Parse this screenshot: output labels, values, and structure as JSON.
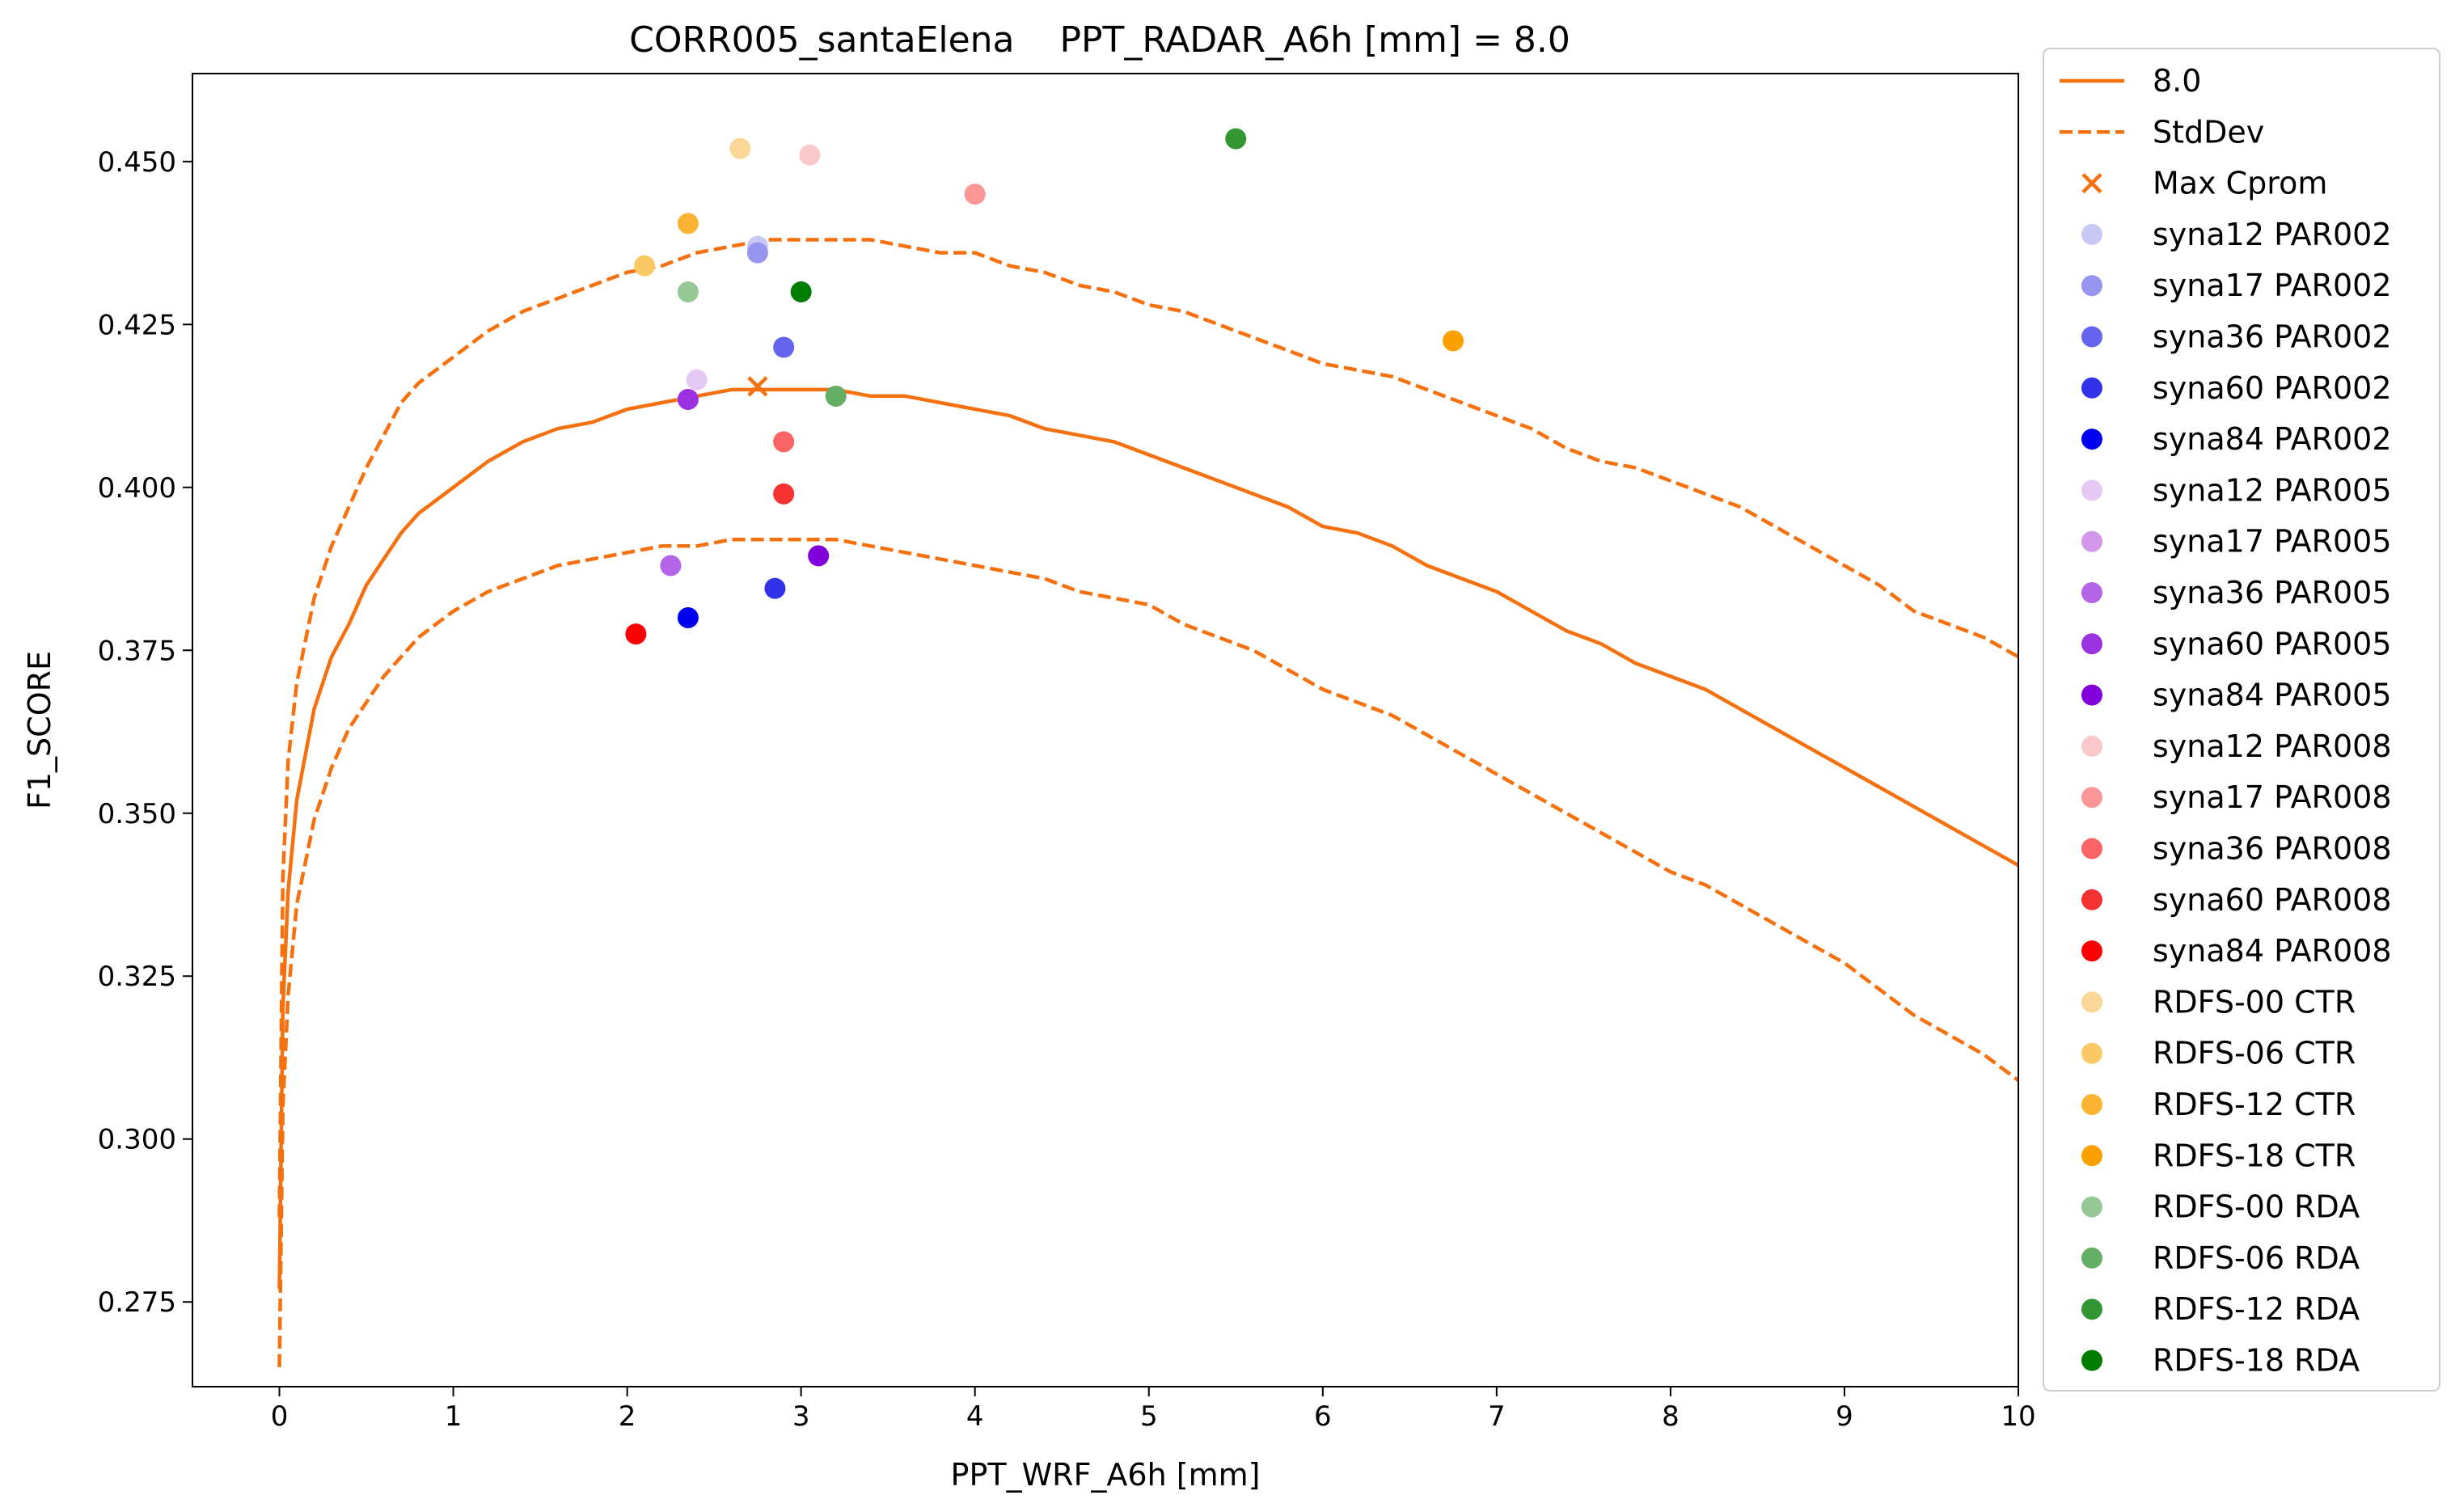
{
  "chart_data": {
    "type": "line",
    "title": "CORR005_santaElena    PPT_RADAR_A6h [mm] = 8.0",
    "xlabel": "PPT_WRF_A6h [mm]",
    "ylabel": "F1_SCORE",
    "xlim": [
      -0.5,
      10
    ],
    "ylim": [
      0.262,
      0.4635
    ],
    "x_ticks": [
      0,
      1,
      2,
      3,
      4,
      5,
      6,
      7,
      8,
      9,
      10
    ],
    "x_tick_labels": [
      "0",
      "1",
      "2",
      "3",
      "4",
      "5",
      "6",
      "7",
      "8",
      "9",
      "10"
    ],
    "y_ticks": [
      0.275,
      0.3,
      0.325,
      0.35,
      0.375,
      0.4,
      0.425,
      0.45
    ],
    "y_tick_labels": [
      "0.275",
      "0.300",
      "0.325",
      "0.350",
      "0.375",
      "0.400",
      "0.425",
      "0.450"
    ],
    "grid": false,
    "legend_position": "outside-right",
    "line_color": "#f5700f",
    "lines": [
      {
        "name": "8.0",
        "style": "solid",
        "x": [
          0,
          0.02,
          0.05,
          0.1,
          0.2,
          0.3,
          0.4,
          0.5,
          0.6,
          0.7,
          0.8,
          0.9,
          1.0,
          1.2,
          1.4,
          1.6,
          1.8,
          2.0,
          2.2,
          2.4,
          2.6,
          2.8,
          3.0,
          3.2,
          3.4,
          3.6,
          3.8,
          4.0,
          4.2,
          4.4,
          4.6,
          4.8,
          5.0,
          5.2,
          5.4,
          5.6,
          5.8,
          6.0,
          6.2,
          6.4,
          6.6,
          6.8,
          7.0,
          7.2,
          7.4,
          7.6,
          7.8,
          8.0,
          8.2,
          8.4,
          8.6,
          8.8,
          9.0,
          9.2,
          9.4,
          9.6,
          9.8,
          10.0
        ],
        "y": [
          0.277,
          0.32,
          0.338,
          0.352,
          0.366,
          0.374,
          0.379,
          0.385,
          0.389,
          0.393,
          0.396,
          0.398,
          0.4,
          0.404,
          0.407,
          0.409,
          0.41,
          0.412,
          0.413,
          0.414,
          0.415,
          0.415,
          0.415,
          0.415,
          0.414,
          0.414,
          0.413,
          0.412,
          0.411,
          0.409,
          0.408,
          0.407,
          0.405,
          0.403,
          0.401,
          0.399,
          0.397,
          0.394,
          0.393,
          0.391,
          0.388,
          0.386,
          0.384,
          0.381,
          0.378,
          0.376,
          0.373,
          0.371,
          0.369,
          0.366,
          0.363,
          0.36,
          0.357,
          0.354,
          0.351,
          0.348,
          0.345,
          0.342
        ]
      },
      {
        "name": "StdDev",
        "style": "dashed",
        "x": [
          0,
          0.02,
          0.05,
          0.1,
          0.2,
          0.3,
          0.4,
          0.5,
          0.6,
          0.7,
          0.8,
          0.9,
          1.0,
          1.2,
          1.4,
          1.6,
          1.8,
          2.0,
          2.2,
          2.4,
          2.6,
          2.8,
          3.0,
          3.2,
          3.4,
          3.6,
          3.8,
          4.0,
          4.2,
          4.4,
          4.6,
          4.8,
          5.0,
          5.2,
          5.4,
          5.6,
          5.8,
          6.0,
          6.2,
          6.4,
          6.6,
          6.8,
          7.0,
          7.2,
          7.4,
          7.6,
          7.8,
          8.0,
          8.2,
          8.4,
          8.6,
          8.8,
          9.0,
          9.2,
          9.4,
          9.6,
          9.8,
          10.0
        ],
        "y": [
          0.288,
          0.34,
          0.358,
          0.37,
          0.383,
          0.391,
          0.397,
          0.403,
          0.408,
          0.413,
          0.416,
          0.418,
          0.42,
          0.424,
          0.427,
          0.429,
          0.431,
          0.433,
          0.434,
          0.436,
          0.437,
          0.438,
          0.438,
          0.438,
          0.438,
          0.437,
          0.436,
          0.436,
          0.434,
          0.433,
          0.431,
          0.43,
          0.428,
          0.427,
          0.425,
          0.423,
          0.421,
          0.419,
          0.418,
          0.417,
          0.415,
          0.413,
          0.411,
          0.409,
          0.406,
          0.404,
          0.403,
          0.401,
          0.399,
          0.397,
          0.394,
          0.391,
          0.388,
          0.385,
          0.381,
          0.379,
          0.377,
          0.374
        ]
      },
      {
        "name": "",
        "style": "dashed",
        "x": [
          0,
          0.02,
          0.05,
          0.1,
          0.2,
          0.3,
          0.4,
          0.5,
          0.6,
          0.7,
          0.8,
          0.9,
          1.0,
          1.2,
          1.4,
          1.6,
          1.8,
          2.0,
          2.2,
          2.4,
          2.6,
          2.8,
          3.0,
          3.2,
          3.4,
          3.6,
          3.8,
          4.0,
          4.2,
          4.4,
          4.6,
          4.8,
          5.0,
          5.2,
          5.4,
          5.6,
          5.8,
          6.0,
          6.2,
          6.4,
          6.6,
          6.8,
          7.0,
          7.2,
          7.4,
          7.6,
          7.8,
          8.0,
          8.2,
          8.4,
          8.6,
          8.8,
          9.0,
          9.2,
          9.4,
          9.6,
          9.8,
          10.0
        ],
        "y": [
          0.265,
          0.305,
          0.322,
          0.336,
          0.349,
          0.357,
          0.363,
          0.367,
          0.371,
          0.374,
          0.377,
          0.379,
          0.381,
          0.384,
          0.386,
          0.388,
          0.389,
          0.39,
          0.391,
          0.391,
          0.392,
          0.392,
          0.392,
          0.392,
          0.391,
          0.39,
          0.389,
          0.388,
          0.387,
          0.386,
          0.384,
          0.383,
          0.382,
          0.379,
          0.377,
          0.375,
          0.372,
          0.369,
          0.367,
          0.365,
          0.362,
          0.359,
          0.356,
          0.353,
          0.35,
          0.347,
          0.344,
          0.341,
          0.339,
          0.336,
          0.333,
          0.33,
          0.327,
          0.323,
          0.319,
          0.316,
          0.313,
          0.309
        ]
      }
    ],
    "max_marker": {
      "name": "Max Cprom",
      "x": 2.75,
      "y": 0.4155,
      "color": "#f5700f"
    },
    "points": [
      {
        "name": "syna12 PAR002",
        "x": 2.75,
        "y": 0.437,
        "color": "#c8c8f5"
      },
      {
        "name": "syna17 PAR002",
        "x": 2.75,
        "y": 0.436,
        "color": "#9696f0"
      },
      {
        "name": "syna36 PAR002",
        "x": 2.9,
        "y": 0.4215,
        "color": "#6464f0"
      },
      {
        "name": "syna60 PAR002",
        "x": 2.85,
        "y": 0.3845,
        "color": "#3232eb"
      },
      {
        "name": "syna84 PAR002",
        "x": 2.35,
        "y": 0.38,
        "color": "#0000f0"
      },
      {
        "name": "syna12 PAR005",
        "x": 2.4,
        "y": 0.4165,
        "color": "#e6c8f5"
      },
      {
        "name": "syna17 PAR005",
        "x": 2.35,
        "y": 0.4135,
        "color": "#d296eb"
      },
      {
        "name": "syna36 PAR005",
        "x": 2.25,
        "y": 0.388,
        "color": "#b464e6"
      },
      {
        "name": "syna60 PAR005",
        "x": 2.35,
        "y": 0.4135,
        "color": "#9b32e1"
      },
      {
        "name": "syna84 PAR005",
        "x": 3.1,
        "y": 0.3895,
        "color": "#8200dc"
      },
      {
        "name": "syna12 PAR008",
        "x": 3.05,
        "y": 0.451,
        "color": "#fac8c8"
      },
      {
        "name": "syna17 PAR008",
        "x": 4.0,
        "y": 0.445,
        "color": "#fa9696"
      },
      {
        "name": "syna36 PAR008",
        "x": 2.9,
        "y": 0.407,
        "color": "#fa6464"
      },
      {
        "name": "syna60 PAR008",
        "x": 2.9,
        "y": 0.399,
        "color": "#f53232"
      },
      {
        "name": "syna84 PAR008",
        "x": 2.05,
        "y": 0.3775,
        "color": "#fa0000"
      },
      {
        "name": "RDFS-00 CTR",
        "x": 2.65,
        "y": 0.452,
        "color": "#fad796"
      },
      {
        "name": "RDFS-06 CTR",
        "x": 2.1,
        "y": 0.434,
        "color": "#fac864"
      },
      {
        "name": "RDFS-12 CTR",
        "x": 2.35,
        "y": 0.4405,
        "color": "#fab432"
      },
      {
        "name": "RDFS-18 CTR",
        "x": 6.75,
        "y": 0.4225,
        "color": "#faa000"
      },
      {
        "name": "RDFS-00 RDA",
        "x": 2.35,
        "y": 0.43,
        "color": "#96c896"
      },
      {
        "name": "RDFS-06 RDA",
        "x": 3.2,
        "y": 0.414,
        "color": "#64af64"
      },
      {
        "name": "RDFS-12 RDA",
        "x": 5.5,
        "y": 0.4535,
        "color": "#329632"
      },
      {
        "name": "RDFS-18 RDA",
        "x": 3.0,
        "y": 0.43,
        "color": "#007d00"
      }
    ]
  }
}
